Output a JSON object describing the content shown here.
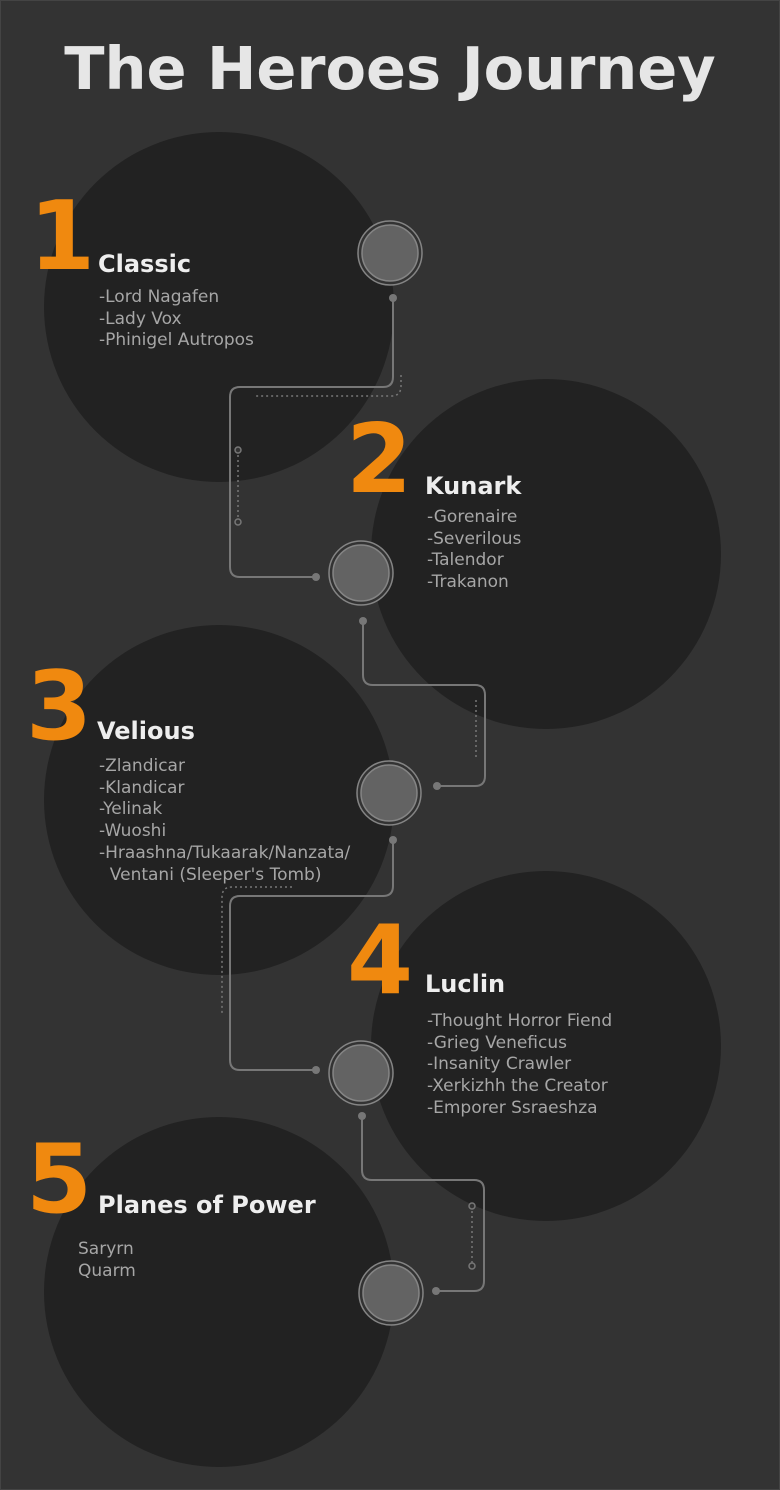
{
  "title": "The Heroes Journey",
  "colors": {
    "background": "#333333",
    "disc": "#222222",
    "number": "#f0890f",
    "heading": "#eeeeee",
    "item_text": "#a6a6a6",
    "connector": "#777777",
    "node_fill": "#636363"
  },
  "eras": [
    {
      "number": "1",
      "name": "Classic",
      "items": [
        "-Lord Nagafen",
        "-Lady Vox",
        "-Phinigel Autropos"
      ]
    },
    {
      "number": "2",
      "name": "Kunark",
      "items": [
        "-Gorenaire",
        "-Severilous",
        "-Talendor",
        "-Trakanon"
      ]
    },
    {
      "number": "3",
      "name": "Velious",
      "items": [
        "-Zlandicar",
        "-Klandicar",
        "-Yelinak",
        "-Wuoshi",
        "-Hraashna/Tukaarak/Nanzata/",
        "  Ventani (Sleeper's Tomb)"
      ]
    },
    {
      "number": "4",
      "name": "Luclin",
      "items": [
        "-Thought Horror Fiend",
        "-Grieg Veneficus",
        "-Insanity Crawler",
        "-Xerkizhh the Creator",
        "-Emporer Ssraeshza"
      ]
    },
    {
      "number": "5",
      "name": "Planes of Power",
      "items": [
        "Saryrn",
        "Quarm"
      ]
    }
  ]
}
